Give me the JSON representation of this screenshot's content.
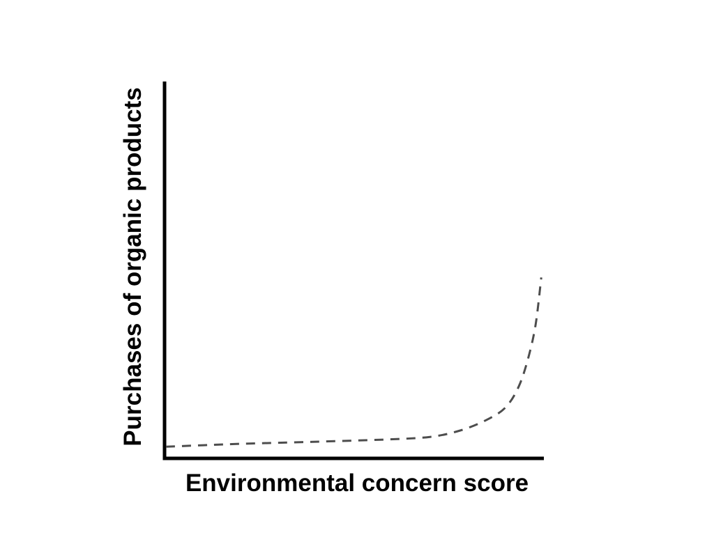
{
  "chart_data": {
    "type": "line",
    "title": "",
    "xlabel": "Environmental concern score",
    "ylabel": "Purchases of organic products",
    "x_axis": {
      "range": [
        0,
        100
      ],
      "tick_labels": [],
      "ticks_visible": false
    },
    "y_axis": {
      "range": [
        0,
        100
      ],
      "tick_labels": [],
      "ticks_visible": false
    },
    "grid": false,
    "legend": false,
    "series": [
      {
        "name": "organic-purchases-vs-environmental-concern",
        "line_style": "dashed",
        "color": "#4d4d4d",
        "points": [
          {
            "x": 0,
            "y": 3.1
          },
          {
            "x": 10,
            "y": 3.5
          },
          {
            "x": 21,
            "y": 3.9
          },
          {
            "x": 39,
            "y": 4.4
          },
          {
            "x": 58,
            "y": 5.0
          },
          {
            "x": 70,
            "y": 5.7
          },
          {
            "x": 78,
            "y": 7.4
          },
          {
            "x": 85,
            "y": 10.2
          },
          {
            "x": 90,
            "y": 13.5
          },
          {
            "x": 93.5,
            "y": 19.0
          },
          {
            "x": 96,
            "y": 26.5
          },
          {
            "x": 98,
            "y": 35.5
          },
          {
            "x": 99.5,
            "y": 48.0
          }
        ]
      }
    ]
  },
  "labels": {
    "xlabel": "Environmental concern score",
    "ylabel": "Purchases of organic products"
  },
  "style": {
    "axis_color": "#000000",
    "curve_color": "#4d4d4d",
    "label_color": "#000000",
    "background": "#ffffff"
  }
}
